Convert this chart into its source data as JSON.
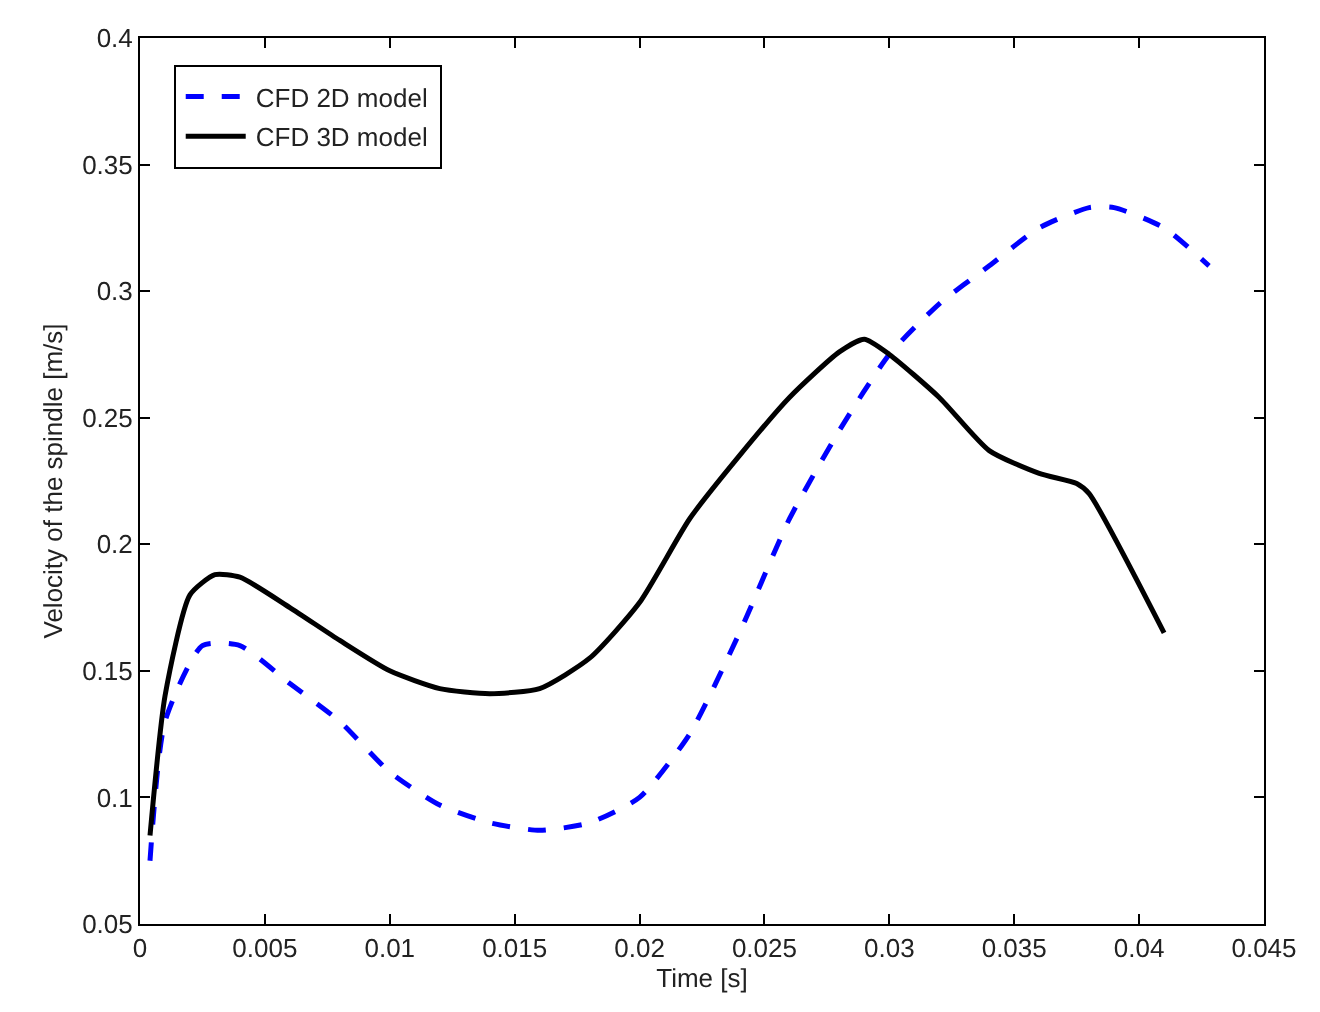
{
  "chart_data": {
    "type": "line",
    "xlabel": "Time [s]",
    "ylabel": "Velocity of the spindle [m/s]",
    "xlim": [
      0,
      0.045
    ],
    "xticks": [
      0,
      0.005,
      0.01,
      0.015,
      0.02,
      0.025,
      0.03,
      0.035,
      0.04,
      0.045
    ],
    "ylim": [
      0.05,
      0.4
    ],
    "yticks": [
      0.05,
      0.1,
      0.15,
      0.2,
      0.25,
      0.3,
      0.35,
      0.4
    ],
    "legend": "top left",
    "marker": "none",
    "series": [
      {
        "name": "CFD 2D model",
        "color": "#0000ff",
        "line_style": "dashed",
        "x": [
          0.0004,
          0.001,
          0.0025,
          0.004,
          0.006,
          0.008,
          0.01,
          0.012,
          0.014,
          0.016,
          0.018,
          0.02,
          0.022,
          0.024,
          0.026,
          0.028,
          0.03,
          0.032,
          0.034,
          0.036,
          0.038,
          0.039,
          0.041,
          0.0428
        ],
        "values": [
          0.075,
          0.13,
          0.16,
          0.16,
          0.145,
          0.13,
          0.11,
          0.097,
          0.09,
          0.087,
          0.09,
          0.1,
          0.125,
          0.165,
          0.21,
          0.245,
          0.275,
          0.295,
          0.31,
          0.325,
          0.333,
          0.333,
          0.325,
          0.31
        ]
      },
      {
        "name": "CFD 3D model",
        "color": "#000000",
        "line_style": "solid",
        "x": [
          0.0004,
          0.001,
          0.002,
          0.003,
          0.004,
          0.006,
          0.008,
          0.01,
          0.012,
          0.014,
          0.016,
          0.018,
          0.02,
          0.022,
          0.024,
          0.026,
          0.028,
          0.029,
          0.03,
          0.032,
          0.034,
          0.036,
          0.0375,
          0.038,
          0.041
        ],
        "values": [
          0.085,
          0.14,
          0.18,
          0.188,
          0.187,
          0.175,
          0.162,
          0.15,
          0.143,
          0.141,
          0.143,
          0.155,
          0.177,
          0.21,
          0.235,
          0.258,
          0.276,
          0.281,
          0.275,
          0.258,
          0.237,
          0.228,
          0.224,
          0.22,
          0.165
        ]
      }
    ]
  }
}
